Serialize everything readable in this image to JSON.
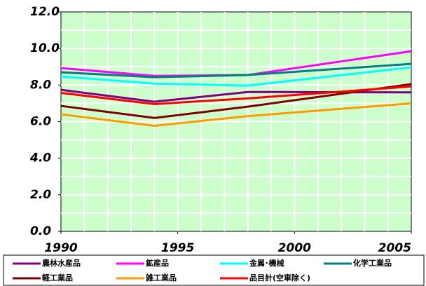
{
  "chart_data": {
    "type": "line",
    "x": [
      1990,
      1994,
      1998,
      2005
    ],
    "xlim": [
      1990,
      2005
    ],
    "xticks": [
      1990,
      1995,
      2000,
      2005
    ],
    "ylim": [
      0,
      12
    ],
    "yticks": [
      {
        "value": 0,
        "label": "0.0"
      },
      {
        "value": 2,
        "label": "2.0"
      },
      {
        "value": 4,
        "label": "4.0"
      },
      {
        "value": 6,
        "label": "6.0"
      },
      {
        "value": 8,
        "label": "8.0"
      },
      {
        "value": 10,
        "label": "10.0"
      },
      {
        "value": 12,
        "label": "12.0"
      }
    ],
    "grid": true,
    "legend": "bottom",
    "series": [
      {
        "name": "農林水産品",
        "color": "#800080",
        "values": [
          7.74,
          7.09,
          7.62,
          7.6
        ]
      },
      {
        "name": "鉱産品",
        "color": "#ff00ff",
        "values": [
          8.93,
          8.5,
          8.55,
          9.85
        ]
      },
      {
        "name": "金属･機械",
        "color": "#00ffff",
        "values": [
          8.47,
          8.08,
          7.97,
          8.97
        ]
      },
      {
        "name": "化学工業品",
        "color": "#008080",
        "values": [
          8.7,
          8.43,
          8.55,
          9.16
        ]
      },
      {
        "name": "軽工業品",
        "color": "#800000",
        "values": [
          6.86,
          6.2,
          6.82,
          8.05
        ]
      },
      {
        "name": "雑工業品",
        "color": "#ff9900",
        "values": [
          6.4,
          5.77,
          6.3,
          7.0
        ]
      },
      {
        "name": "品目計(空車除く)",
        "color": "#ff0000",
        "values": [
          7.57,
          6.96,
          7.27,
          7.92
        ]
      }
    ]
  }
}
